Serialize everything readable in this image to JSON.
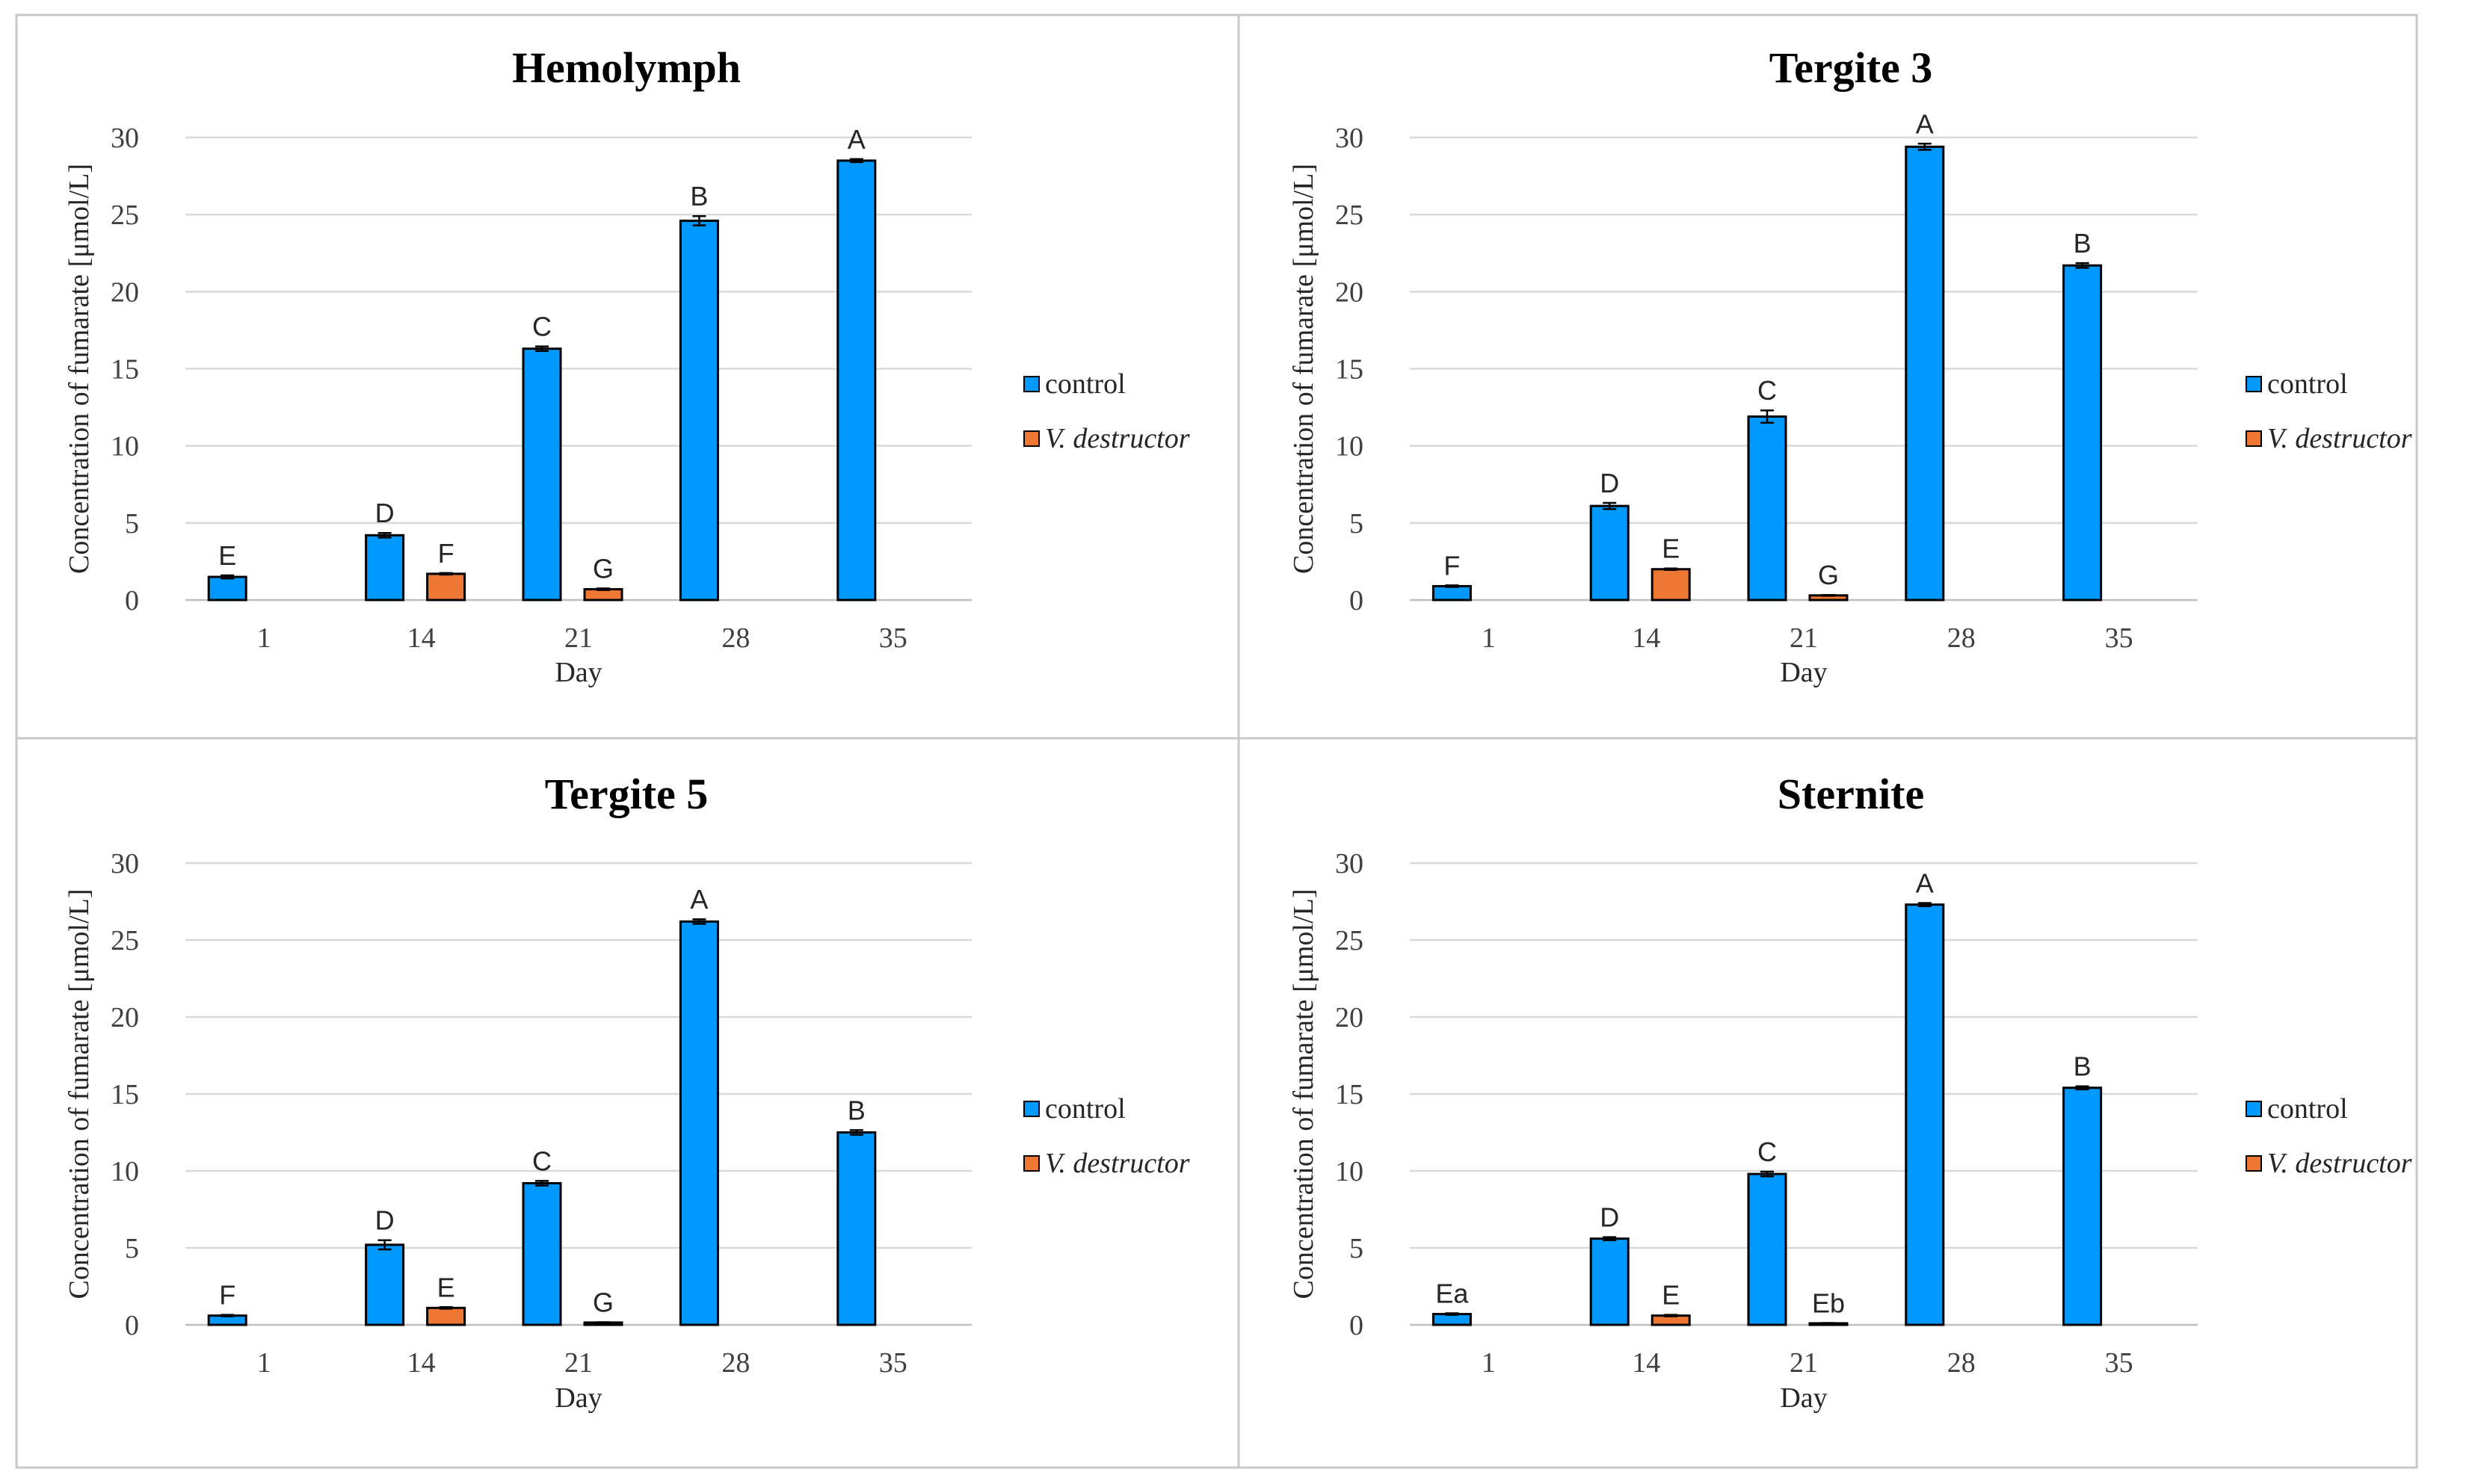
{
  "colors": {
    "control": "#0099ff",
    "v_destructor": "#ee7733"
  },
  "chart_data": [
    {
      "type": "bar",
      "title": "Hemolymph",
      "xlabel": "Day",
      "ylabel": "Concentration of fumarate [μmol/L]",
      "ylim": [
        0,
        30
      ],
      "yticks": [
        "0",
        "5",
        "10",
        "15",
        "20",
        "25",
        "30"
      ],
      "categories": [
        "1",
        "14",
        "21",
        "28",
        "35"
      ],
      "legend_position": "right",
      "series": [
        {
          "name": "control",
          "values": [
            1.5,
            4.2,
            16.3,
            24.6,
            28.5
          ],
          "errors": [
            0.1,
            0.15,
            0.15,
            0.3,
            0.1
          ],
          "labels": [
            "E",
            "D",
            "C",
            "B",
            "A"
          ]
        },
        {
          "name": "V. destructor",
          "values": [
            0,
            1.7,
            0.7,
            0,
            0
          ],
          "errors": [
            0,
            0.05,
            0.05,
            0,
            0
          ],
          "labels": [
            "",
            "F",
            "G",
            "",
            ""
          ]
        }
      ]
    },
    {
      "type": "bar",
      "title": "Tergite 3",
      "xlabel": "Day",
      "ylabel": "Concentration of fumarate [μmol/L]",
      "ylim": [
        0,
        30
      ],
      "yticks": [
        "0",
        "5",
        "10",
        "15",
        "20",
        "25",
        "30"
      ],
      "categories": [
        "1",
        "14",
        "21",
        "28",
        "35"
      ],
      "legend_position": "right",
      "series": [
        {
          "name": "control",
          "values": [
            0.9,
            6.1,
            11.9,
            29.4,
            21.7
          ],
          "errors": [
            0.05,
            0.2,
            0.4,
            0.2,
            0.15
          ],
          "labels": [
            "F",
            "D",
            "C",
            "A",
            "B"
          ]
        },
        {
          "name": "V. destructor",
          "values": [
            0,
            2.0,
            0.3,
            0,
            0
          ],
          "errors": [
            0,
            0.05,
            0.03,
            0,
            0
          ],
          "labels": [
            "",
            "E",
            "G",
            "",
            ""
          ]
        }
      ]
    },
    {
      "type": "bar",
      "title": "Tergite 5",
      "xlabel": "Day",
      "ylabel": "Concentration of fumarate [μmol/L]",
      "ylim": [
        0,
        30
      ],
      "yticks": [
        "0",
        "5",
        "10",
        "15",
        "20",
        "25",
        "30"
      ],
      "categories": [
        "1",
        "14",
        "21",
        "28",
        "35"
      ],
      "legend_position": "right",
      "series": [
        {
          "name": "control",
          "values": [
            0.6,
            5.2,
            9.2,
            26.2,
            12.5
          ],
          "errors": [
            0.05,
            0.3,
            0.15,
            0.15,
            0.15
          ],
          "labels": [
            "F",
            "D",
            "C",
            "A",
            "B"
          ]
        },
        {
          "name": "V. destructor",
          "values": [
            0,
            1.1,
            0.15,
            0,
            0
          ],
          "errors": [
            0,
            0.05,
            0.02,
            0,
            0
          ],
          "labels": [
            "",
            "E",
            "G",
            "",
            ""
          ]
        }
      ]
    },
    {
      "type": "bar",
      "title": "Sternite",
      "xlabel": "Day",
      "ylabel": "Concentration of fumarate [μmol/L]",
      "ylim": [
        0,
        30
      ],
      "yticks": [
        "0",
        "5",
        "10",
        "15",
        "20",
        "25",
        "30"
      ],
      "categories": [
        "1",
        "14",
        "21",
        "28",
        "35"
      ],
      "legend_position": "right",
      "series": [
        {
          "name": "control",
          "values": [
            0.7,
            5.6,
            9.8,
            27.3,
            15.4
          ],
          "errors": [
            0.05,
            0.1,
            0.15,
            0.1,
            0.1
          ],
          "labels": [
            "Ea",
            "D",
            "C",
            "A",
            "B"
          ]
        },
        {
          "name": "V. destructor",
          "values": [
            0,
            0.6,
            0.1,
            0,
            0
          ],
          "errors": [
            0,
            0.05,
            0.02,
            0,
            0
          ],
          "labels": [
            "",
            "E",
            "Eb",
            "",
            ""
          ]
        }
      ]
    }
  ]
}
